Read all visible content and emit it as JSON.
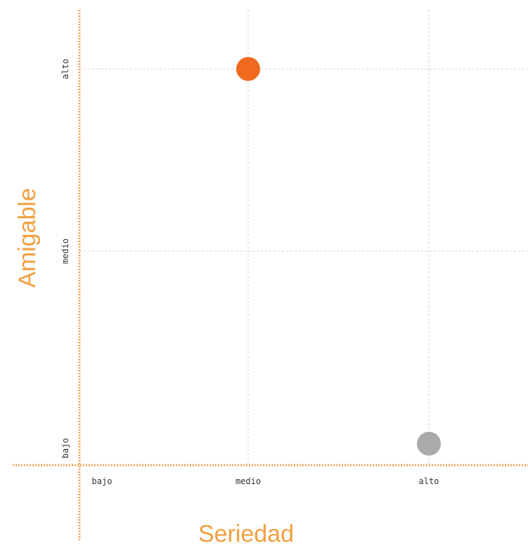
{
  "chart_data": {
    "type": "scatter",
    "title": "",
    "xlabel": "Seriedad",
    "ylabel": "Amigable",
    "x_ticks": [
      "bajo",
      "medio",
      "alto"
    ],
    "y_ticks": [
      "bajo",
      "medio",
      "alto"
    ],
    "xlim": [
      0.9,
      3.5
    ],
    "ylim": [
      0.9,
      3.2
    ],
    "grid": true,
    "legend": "none",
    "points": [
      {
        "x": 2,
        "y": 3,
        "color": "#ef6a1f"
      },
      {
        "x": 3,
        "y": 1.1,
        "color": "#aaaaaa"
      }
    ]
  },
  "colors": {
    "axis": "#f5a35c",
    "grid": "#cccccc",
    "title": "#f0a040"
  }
}
